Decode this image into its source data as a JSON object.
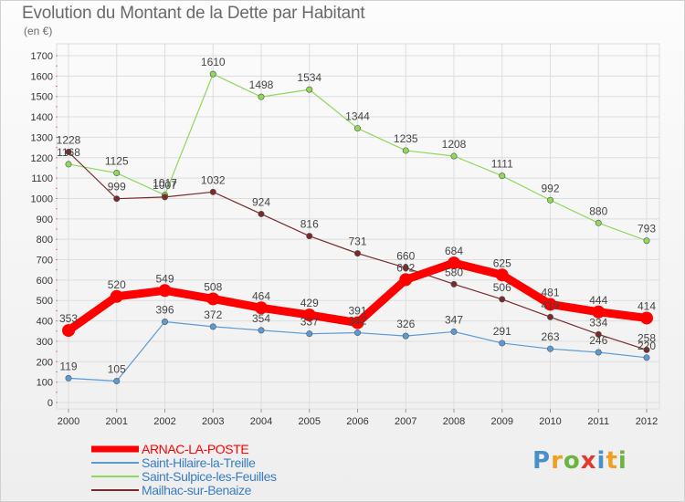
{
  "title": "Evolution du Montant de la Dette par Habitant",
  "subtitle": "(en €)",
  "logo": "Proxiti",
  "chart_data": {
    "type": "line",
    "title": "Evolution du Montant de la Dette par Habitant",
    "subtitle": "(en €)",
    "x": [
      "2000",
      "2001",
      "2002",
      "2003",
      "2004",
      "2005",
      "2006",
      "2007",
      "2008",
      "2009",
      "2010",
      "2011",
      "2012"
    ],
    "ylim": [
      0,
      1700
    ],
    "yticks": [
      0,
      100,
      200,
      300,
      400,
      500,
      600,
      700,
      800,
      900,
      1000,
      1100,
      1200,
      1300,
      1400,
      1500,
      1600,
      1700
    ],
    "grid": true,
    "legend_position": "bottom-left",
    "series": [
      {
        "name": "ARNAC-LA-POSTE",
        "color": "#ff0000",
        "emphasis": true,
        "values": [
          353,
          520,
          549,
          508,
          464,
          429,
          391,
          602,
          684,
          625,
          481,
          444,
          414
        ]
      },
      {
        "name": "Saint-Hilaire-la-Treille",
        "color": "#5b9bd5",
        "values": [
          119,
          105,
          396,
          372,
          354,
          337,
          342,
          326,
          347,
          291,
          263,
          246,
          220
        ]
      },
      {
        "name": "Saint-Sulpice-les-Feuilles",
        "color": "#8fd85a",
        "values": [
          1168,
          1125,
          1017,
          1610,
          1498,
          1534,
          1344,
          1235,
          1208,
          1111,
          992,
          880,
          793
        ]
      },
      {
        "name": "Mailhac-sur-Benaize",
        "color": "#7a2a2a",
        "values": [
          1228,
          999,
          1007,
          1032,
          924,
          816,
          731,
          660,
          580,
          506,
          419,
          334,
          258
        ]
      }
    ]
  }
}
